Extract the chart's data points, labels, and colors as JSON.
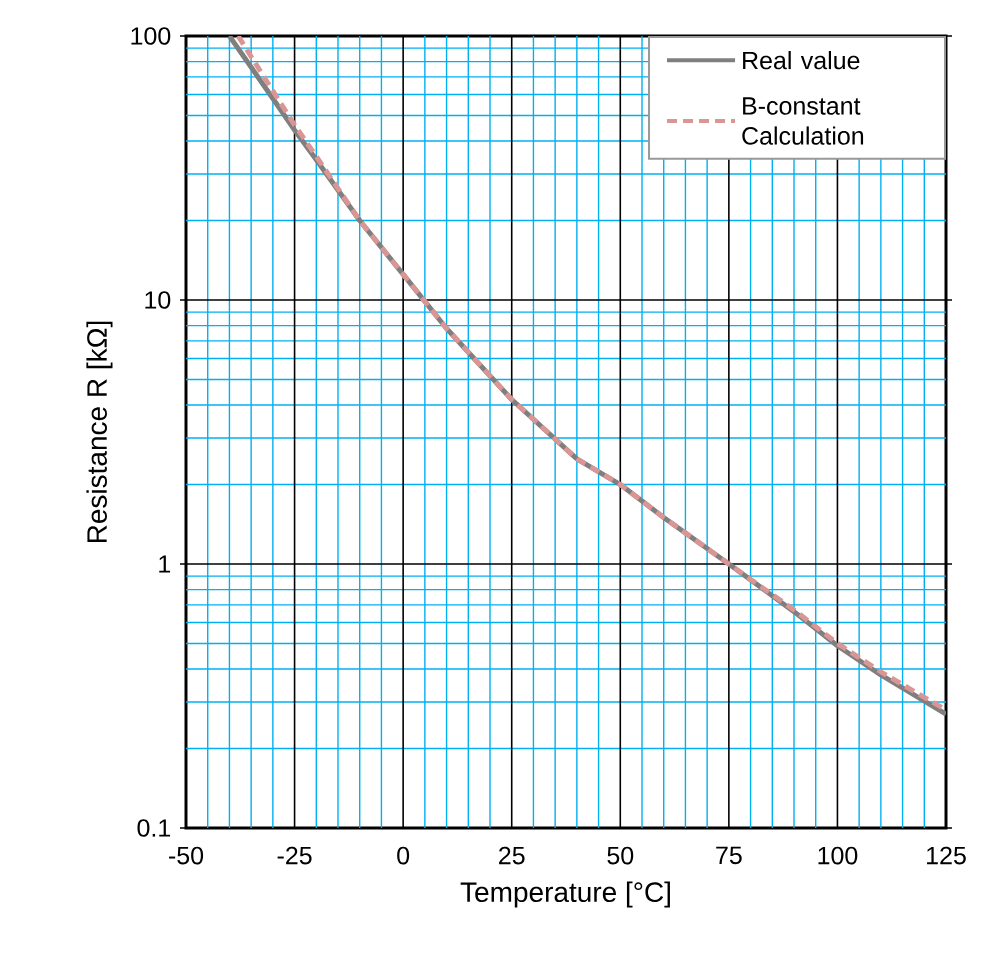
{
  "chart_data": {
    "type": "line",
    "xlabel": "Temperature [°C]",
    "ylabel": "Resistance R [kΩ]",
    "log": "y",
    "grid": true,
    "legend": "top right",
    "marker": "none",
    "xlim": [
      -50,
      125
    ],
    "xticks": [
      -50,
      {
        "value": -45,
        "label": null
      },
      {
        "value": -40,
        "label": null
      },
      {
        "value": -35,
        "label": null
      },
      {
        "value": -30,
        "label": null
      },
      -25,
      {
        "value": -20,
        "label": null
      },
      {
        "value": -15,
        "label": null
      },
      {
        "value": -10,
        "label": null
      },
      {
        "value": -5,
        "label": null
      },
      0,
      {
        "value": 5,
        "label": null
      },
      {
        "value": 10,
        "label": null
      },
      {
        "value": 15,
        "label": null
      },
      {
        "value": 20,
        "label": null
      },
      25,
      {
        "value": 30,
        "label": null
      },
      {
        "value": 35,
        "label": null
      },
      {
        "value": 40,
        "label": null
      },
      {
        "value": 45,
        "label": null
      },
      50,
      {
        "value": 55,
        "label": null
      },
      {
        "value": 60,
        "label": null
      },
      {
        "value": 65,
        "label": null
      },
      {
        "value": 70,
        "label": null
      },
      75,
      {
        "value": 80,
        "label": null
      },
      {
        "value": 85,
        "label": null
      },
      {
        "value": 90,
        "label": null
      },
      {
        "value": 95,
        "label": null
      },
      100,
      {
        "value": 105,
        "label": null
      },
      {
        "value": 110,
        "label": null
      },
      {
        "value": 115,
        "label": null
      },
      {
        "value": 120,
        "label": null
      },
      125
    ],
    "ylim": [
      0.1,
      100
    ],
    "yticks": [
      0.1,
      1,
      10,
      100
    ],
    "series": [
      {
        "name": "Real value",
        "color": "#7f7f7f",
        "line_style": "solid",
        "x": [
          -40,
          -30,
          -25,
          -20,
          -10,
          0,
          10,
          25,
          40,
          50,
          60,
          75,
          90,
          100,
          110,
          125
        ],
        "values": [
          100,
          58,
          44,
          34,
          20,
          12.5,
          7.8,
          4.2,
          2.5,
          2.0,
          1.5,
          1.0,
          0.66,
          0.49,
          0.38,
          0.27
        ]
      },
      {
        "name": "B-constant Calculation",
        "color": "#d99694",
        "line_style": "dashed",
        "x": [
          -38,
          -30,
          -25,
          -20,
          -10,
          0,
          10,
          25,
          40,
          50,
          60,
          75,
          90,
          100,
          110,
          125
        ],
        "values": [
          100,
          62,
          46,
          35,
          20,
          12.5,
          7.8,
          4.2,
          2.5,
          2.0,
          1.5,
          1.0,
          0.67,
          0.5,
          0.39,
          0.28
        ]
      }
    ]
  }
}
